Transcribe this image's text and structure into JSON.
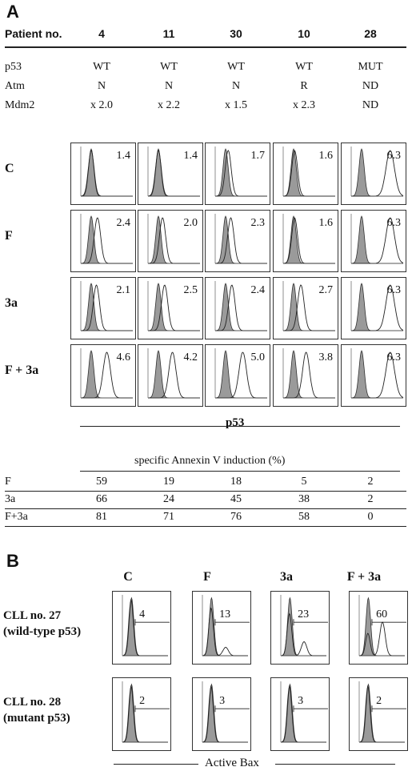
{
  "panel_a": {
    "letter": "A",
    "patient_label": "Patient no.",
    "patients": [
      "4",
      "11",
      "30",
      "10",
      "28"
    ],
    "genotype_rows": [
      {
        "label": "p53",
        "values": [
          "WT",
          "WT",
          "WT",
          "WT",
          "MUT"
        ]
      },
      {
        "label": "Atm",
        "values": [
          "N",
          "N",
          "N",
          "R",
          "ND"
        ]
      },
      {
        "label": "Mdm2",
        "values": [
          "x 2.0",
          "x 2.2",
          "x 1.5",
          "x 2.3",
          "ND"
        ]
      }
    ],
    "conditions": [
      {
        "label": "C",
        "values": [
          "1.4",
          "1.4",
          "1.7",
          "1.6",
          "6.3"
        ],
        "shift": [
          0.0,
          0.0,
          0.05,
          0.02,
          0.55
        ]
      },
      {
        "label": "F",
        "values": [
          "2.4",
          "2.0",
          "2.3",
          "1.6",
          "6.3"
        ],
        "shift": [
          0.12,
          0.08,
          0.1,
          0.02,
          0.55
        ]
      },
      {
        "label": "3a",
        "values": [
          "2.1",
          "2.5",
          "2.4",
          "2.7",
          "6.3"
        ],
        "shift": [
          0.1,
          0.12,
          0.12,
          0.14,
          0.55
        ]
      },
      {
        "label": "F + 3a",
        "values": [
          "4.6",
          "4.2",
          "5.0",
          "3.8",
          "6.3"
        ],
        "shift": [
          0.3,
          0.27,
          0.33,
          0.24,
          0.55
        ]
      }
    ],
    "xaxis_label": "p53",
    "annexin": {
      "title": "specific Annexin V induction (%)",
      "rows": [
        {
          "label": "F",
          "values": [
            "59",
            "19",
            "18",
            "5",
            "2"
          ]
        },
        {
          "label": "3a",
          "values": [
            "66",
            "24",
            "45",
            "38",
            "2"
          ]
        },
        {
          "label": "F+3a",
          "values": [
            "81",
            "71",
            "76",
            "58",
            "0"
          ]
        }
      ]
    }
  },
  "panel_b": {
    "letter": "B",
    "columns": [
      "C",
      "F",
      "3a",
      "F + 3a"
    ],
    "rows": [
      {
        "label_line1": "CLL no. 27",
        "label_line2": "(wild-type p53)",
        "values": [
          "4",
          "13",
          "23",
          "60"
        ],
        "bimodal": [
          0.0,
          0.15,
          0.25,
          0.6
        ]
      },
      {
        "label_line1": "CLL no. 28",
        "label_line2": "(mutant p53)",
        "values": [
          "2",
          "3",
          "3",
          "2"
        ],
        "bimodal": [
          0.0,
          0.0,
          0.0,
          0.0
        ]
      }
    ],
    "xaxis_label": "Active Bax"
  }
}
